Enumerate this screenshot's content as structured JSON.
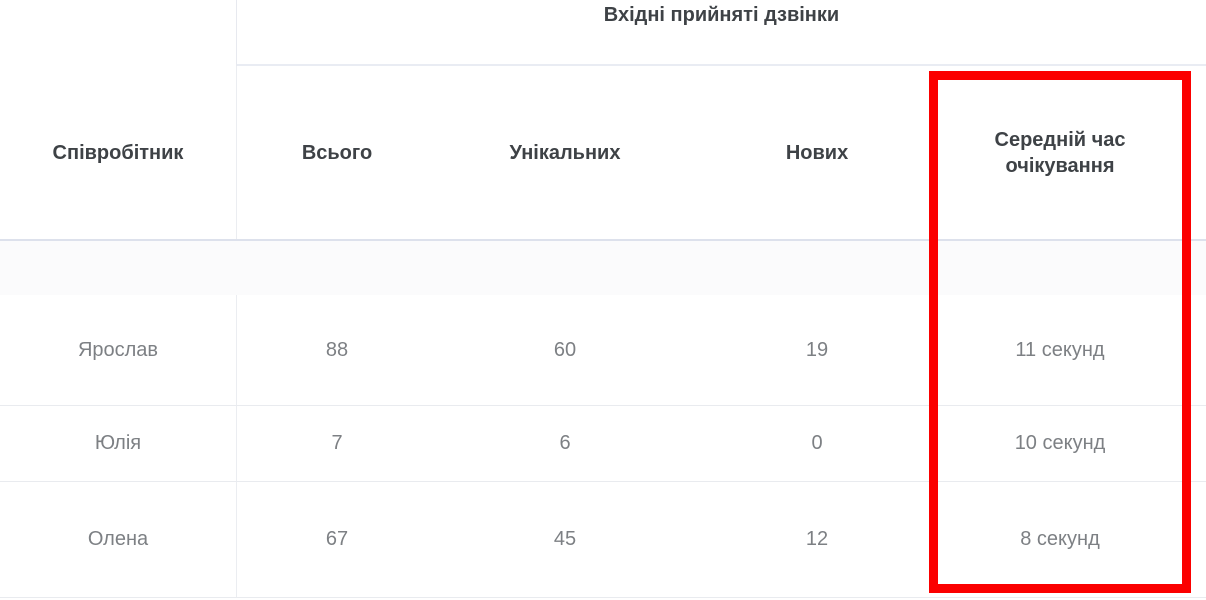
{
  "table": {
    "group_header": "Вхідні прийняті дзвінки",
    "columns": {
      "employee": "Співробітник",
      "total": "Всього",
      "unique": "Унікальних",
      "new": "Нових",
      "avg_wait": "Середній час очікування"
    },
    "rows": [
      {
        "employee": "Ярослав",
        "total": "88",
        "unique": "60",
        "new": "19",
        "avg_wait": "11 секунд"
      },
      {
        "employee": "Юлія",
        "total": "7",
        "unique": "6",
        "new": "0",
        "avg_wait": "10 секунд"
      },
      {
        "employee": "Олена",
        "total": "67",
        "unique": "45",
        "new": "12",
        "avg_wait": "8 секунд"
      }
    ]
  },
  "annotation": {
    "type": "highlight-box",
    "highlighted_column": "Середній час очікування",
    "color": "#fb0000"
  },
  "colors": {
    "header_text": "#3e4246",
    "data_text": "#7d8084",
    "header_divider": "#dde1ec",
    "row_divider": "#e9ebef",
    "spacer_row_bg": "#fbfbfc",
    "highlight": "#fb0000"
  }
}
